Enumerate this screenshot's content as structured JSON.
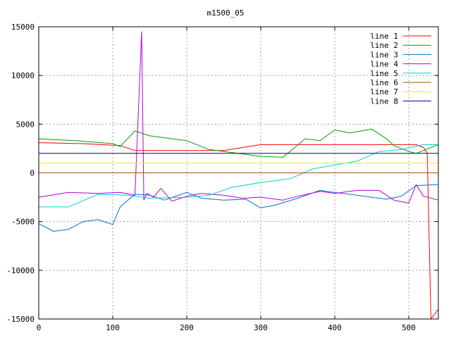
{
  "chart_data": {
    "type": "line",
    "title": "m1500_05",
    "xlabel": "",
    "ylabel": "",
    "xlim": [
      0,
      540
    ],
    "ylim": [
      -15000,
      15000
    ],
    "xticks": [
      "0",
      "100",
      "200",
      "300",
      "400",
      "500"
    ],
    "yticks": [
      "15000",
      "10000",
      "5000",
      "0",
      "-5000",
      "-10000",
      "-15000"
    ],
    "grid": true,
    "legend_position": "top-right",
    "series": [
      {
        "name": "line 1",
        "color": "#ff0000",
        "points": [
          [
            0,
            3100
          ],
          [
            60,
            3000
          ],
          [
            110,
            2800
          ],
          [
            130,
            2300
          ],
          [
            250,
            2300
          ],
          [
            300,
            2900
          ],
          [
            400,
            2900
          ],
          [
            510,
            2900
          ],
          [
            520,
            2600
          ],
          [
            525,
            2000
          ],
          [
            530,
            -15000
          ],
          [
            540,
            -14000
          ]
        ]
      },
      {
        "name": "line 2",
        "color": "#00a000",
        "points": [
          [
            0,
            3500
          ],
          [
            50,
            3300
          ],
          [
            100,
            3000
          ],
          [
            110,
            2700
          ],
          [
            130,
            4300
          ],
          [
            150,
            3800
          ],
          [
            200,
            3300
          ],
          [
            230,
            2400
          ],
          [
            260,
            2100
          ],
          [
            300,
            1700
          ],
          [
            330,
            1600
          ],
          [
            360,
            3500
          ],
          [
            380,
            3300
          ],
          [
            400,
            4400
          ],
          [
            420,
            4100
          ],
          [
            450,
            4500
          ],
          [
            470,
            3500
          ],
          [
            480,
            2800
          ],
          [
            500,
            2200
          ],
          [
            510,
            2000
          ],
          [
            540,
            2900
          ]
        ]
      },
      {
        "name": "line 3",
        "color": "#0070d0",
        "points": [
          [
            0,
            -5200
          ],
          [
            20,
            -6000
          ],
          [
            40,
            -5800
          ],
          [
            60,
            -5000
          ],
          [
            80,
            -4800
          ],
          [
            100,
            -5300
          ],
          [
            110,
            -3500
          ],
          [
            130,
            -2200
          ],
          [
            150,
            -2300
          ],
          [
            170,
            -2800
          ],
          [
            200,
            -2000
          ],
          [
            220,
            -2600
          ],
          [
            250,
            -2800
          ],
          [
            280,
            -2700
          ],
          [
            300,
            -3600
          ],
          [
            320,
            -3300
          ],
          [
            350,
            -2600
          ],
          [
            380,
            -1800
          ],
          [
            400,
            -2000
          ],
          [
            420,
            -2200
          ],
          [
            450,
            -2500
          ],
          [
            470,
            -2700
          ],
          [
            490,
            -2400
          ],
          [
            510,
            -1300
          ],
          [
            540,
            -1200
          ]
        ]
      },
      {
        "name": "line 4",
        "color": "#b000e0",
        "points": [
          [
            0,
            -2500
          ],
          [
            40,
            -2000
          ],
          [
            80,
            -2100
          ],
          [
            110,
            -2000
          ],
          [
            130,
            -2300
          ],
          [
            139,
            14500
          ],
          [
            142,
            -2800
          ],
          [
            146,
            -2100
          ],
          [
            155,
            -2500
          ],
          [
            165,
            -1600
          ],
          [
            180,
            -2900
          ],
          [
            200,
            -2400
          ],
          [
            220,
            -2100
          ],
          [
            250,
            -2300
          ],
          [
            275,
            -2600
          ],
          [
            300,
            -2500
          ],
          [
            330,
            -2800
          ],
          [
            350,
            -2400
          ],
          [
            380,
            -1900
          ],
          [
            400,
            -2100
          ],
          [
            430,
            -1800
          ],
          [
            460,
            -1800
          ],
          [
            480,
            -2800
          ],
          [
            500,
            -3100
          ],
          [
            510,
            -1200
          ],
          [
            520,
            -2400
          ],
          [
            540,
            -2800
          ]
        ]
      },
      {
        "name": "line 5",
        "color": "#00d0d0",
        "points": [
          [
            0,
            -3500
          ],
          [
            40,
            -3500
          ],
          [
            80,
            -2200
          ],
          [
            120,
            -2300
          ],
          [
            150,
            -2600
          ],
          [
            200,
            -2500
          ],
          [
            230,
            -2300
          ],
          [
            260,
            -1500
          ],
          [
            300,
            -1000
          ],
          [
            340,
            -600
          ],
          [
            370,
            400
          ],
          [
            400,
            800
          ],
          [
            430,
            1200
          ],
          [
            460,
            2200
          ],
          [
            490,
            2400
          ],
          [
            520,
            2900
          ],
          [
            540,
            2900
          ]
        ]
      },
      {
        "name": "line 6",
        "color": "#b05000",
        "points": [
          [
            0,
            0
          ],
          [
            100,
            0
          ],
          [
            200,
            0
          ],
          [
            300,
            0
          ],
          [
            400,
            0
          ],
          [
            500,
            0
          ],
          [
            540,
            0
          ]
        ]
      },
      {
        "name": "line 7",
        "color": "#f0f000",
        "points": [
          [
            0,
            1000
          ],
          [
            100,
            1000
          ],
          [
            200,
            1000
          ],
          [
            300,
            1000
          ],
          [
            400,
            1000
          ],
          [
            500,
            1000
          ],
          [
            540,
            1000
          ]
        ]
      },
      {
        "name": "line 8",
        "color": "#000090",
        "points": [
          [
            0,
            2000
          ],
          [
            100,
            2000
          ],
          [
            200,
            2000
          ],
          [
            300,
            2000
          ],
          [
            400,
            2000
          ],
          [
            500,
            2000
          ],
          [
            540,
            2000
          ]
        ]
      }
    ]
  }
}
